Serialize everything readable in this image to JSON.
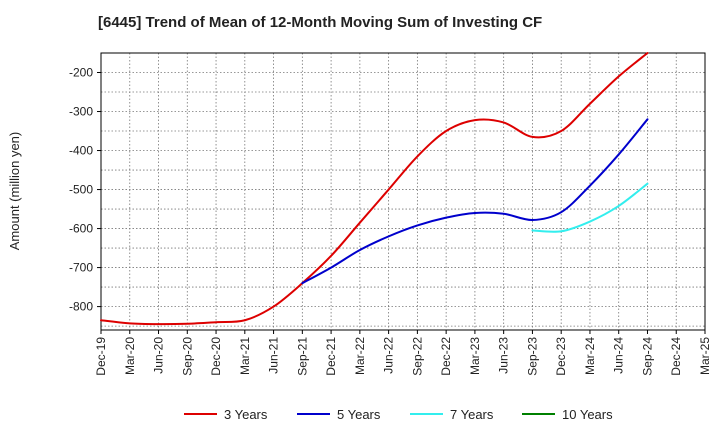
{
  "chart_data": {
    "type": "line",
    "title": "[6445]  Trend of Mean of 12-Month Moving Sum of Investing CF",
    "xlabel": "",
    "ylabel": "Amount (million yen)",
    "ylim": [
      -860,
      -150
    ],
    "yticks": [
      -200,
      -300,
      -400,
      -500,
      -600,
      -700,
      -800
    ],
    "categories": [
      "Dec-19",
      "Mar-20",
      "Jun-20",
      "Sep-20",
      "Dec-20",
      "Mar-21",
      "Jun-21",
      "Sep-21",
      "Dec-21",
      "Mar-22",
      "Jun-22",
      "Sep-22",
      "Dec-22",
      "Mar-23",
      "Jun-23",
      "Sep-23",
      "Dec-23",
      "Mar-24",
      "Jun-24",
      "Sep-24",
      "Dec-24",
      "Mar-25"
    ],
    "grid": true,
    "legend_position": "bottom",
    "series": [
      {
        "name": "3 Years",
        "color": "#dd0000",
        "values": [
          -835,
          -843,
          -845,
          -844,
          -840,
          -835,
          -800,
          -740,
          -670,
          -585,
          -500,
          -415,
          -350,
          -322,
          -328,
          -365,
          -350,
          -280,
          -210,
          -150,
          null,
          null
        ]
      },
      {
        "name": "5 Years",
        "color": "#0000cc",
        "values": [
          null,
          null,
          null,
          null,
          null,
          null,
          null,
          -740,
          -700,
          -655,
          -620,
          -592,
          -572,
          -560,
          -562,
          -578,
          -558,
          -490,
          -410,
          -320,
          null,
          null
        ]
      },
      {
        "name": "7 Years",
        "color": "#33eeee",
        "values": [
          null,
          null,
          null,
          null,
          null,
          null,
          null,
          null,
          null,
          null,
          null,
          null,
          null,
          null,
          null,
          -605,
          -607,
          -582,
          -542,
          -485,
          null,
          null
        ]
      },
      {
        "name": "10 Years",
        "color": "#008000",
        "values": [
          null,
          null,
          null,
          null,
          null,
          null,
          null,
          null,
          null,
          null,
          null,
          null,
          null,
          null,
          null,
          null,
          null,
          null,
          null,
          null,
          null,
          null
        ]
      }
    ]
  }
}
